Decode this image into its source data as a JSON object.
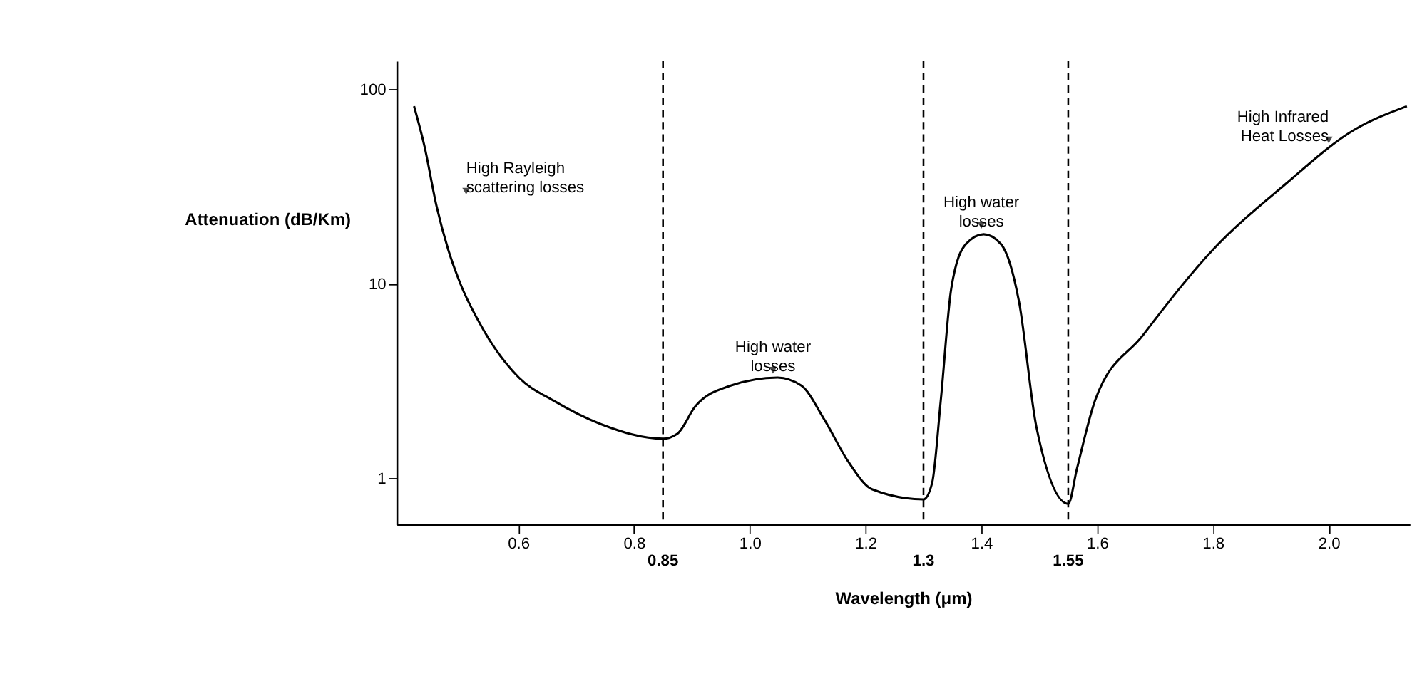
{
  "chart_data": {
    "type": "line",
    "xlabel": "Wavelength (μm)",
    "ylabel": "Attenuation (dB/Km)",
    "log": "y",
    "grid": false,
    "marker": "none",
    "line_style": "solid",
    "xlim": [
      0.39,
      2.14
    ],
    "ylim": [
      0.58,
      140
    ],
    "xticks": [
      0.6,
      0.8,
      {
        "value": 1.0,
        "label": "1.0"
      },
      1.2,
      1.4,
      1.6,
      1.8,
      {
        "value": 2.0,
        "label": "2.0"
      }
    ],
    "yticks": [
      1,
      10,
      100
    ],
    "series": [
      {
        "color": "#000000",
        "x": [
          0.42,
          0.438,
          0.459,
          0.479,
          0.499,
          0.54,
          0.601,
          0.662,
          0.743,
          0.85,
          0.875,
          0.906,
          0.967,
          1.048,
          1.089,
          1.129,
          1.17,
          1.211,
          1.3,
          1.315,
          1.33,
          1.348,
          1.373,
          1.404,
          1.434,
          1.465,
          1.495,
          1.55,
          1.565,
          1.597,
          1.678,
          1.8,
          1.922,
          2.044,
          2.135
        ],
        "values": [
          82,
          51,
          25,
          15,
          10.2,
          5.8,
          3.3,
          2.5,
          1.9,
          1.6,
          1.7,
          2.35,
          3.0,
          3.3,
          3.0,
          2.0,
          1.22,
          0.88,
          0.78,
          0.95,
          2.55,
          9.5,
          16,
          18,
          16,
          8.1,
          1.84,
          0.74,
          1.12,
          2.55,
          5.4,
          15,
          32,
          62,
          82
        ]
      }
    ],
    "ref_lines": [
      {
        "axis": "x",
        "value": 0.85,
        "label": "0.85",
        "line_style": "dashed"
      },
      {
        "axis": "x",
        "value": 1.3,
        "label": "1.3",
        "line_style": "dashed"
      },
      {
        "axis": "x",
        "value": 1.55,
        "label": "1.55",
        "line_style": "dashed"
      }
    ],
    "annotations": [
      {
        "text": "High Rayleigh\nscattering losses",
        "x": 0.51,
        "y": 30
      },
      {
        "text": "High water\nlosses",
        "x": 1.04,
        "y": 3.6
      },
      {
        "text": "High water\nlosses",
        "x": 1.4,
        "y": 20
      },
      {
        "text": "High Infrared\nHeat Losses",
        "x": 2.0,
        "y": 55
      }
    ]
  }
}
